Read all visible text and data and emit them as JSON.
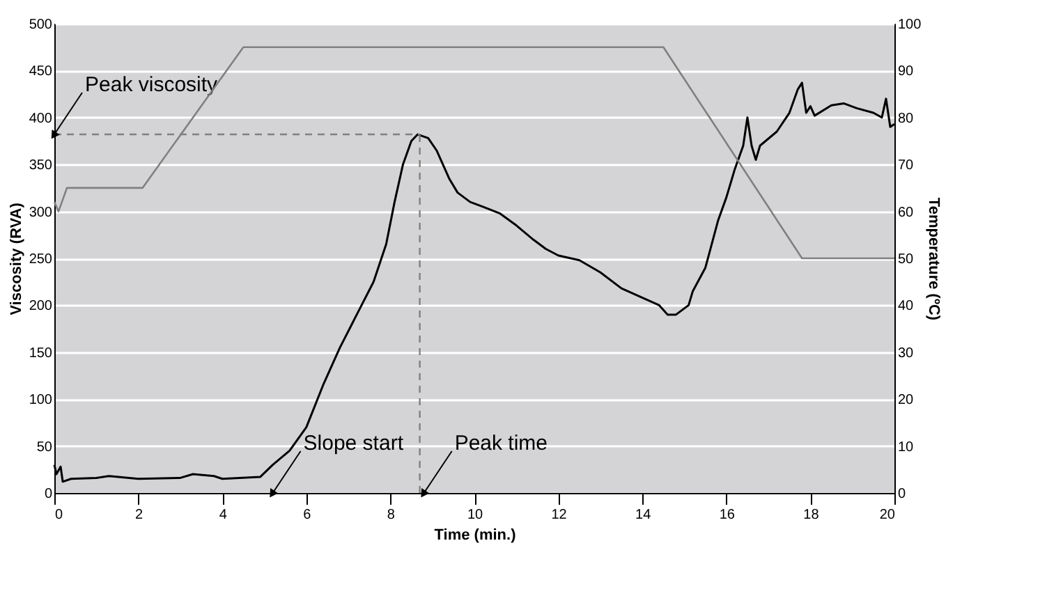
{
  "chart_data": {
    "type": "line",
    "xlabel": "Time (min.)",
    "ylabel": "Viscosity (RVA)",
    "y2label": "Temperature (ºC)",
    "xlim": [
      0,
      20
    ],
    "xticks": [
      0,
      2,
      4,
      6,
      8,
      10,
      12,
      14,
      16,
      18,
      20
    ],
    "ylim": [
      0,
      500
    ],
    "yticks": [
      0,
      50,
      100,
      150,
      200,
      250,
      300,
      350,
      400,
      450,
      500
    ],
    "y2lim": [
      0,
      100
    ],
    "y2ticks": [
      0,
      10,
      20,
      30,
      40,
      50,
      60,
      70,
      80,
      90,
      100
    ],
    "grid": "y",
    "marker": "none",
    "line_style": "solid",
    "series": [
      {
        "color": "#000000",
        "x": [
          0,
          0.05,
          0.15,
          0.2,
          0.4,
          1,
          1.3,
          2,
          3,
          3.3,
          3.8,
          4,
          4.9,
          5.2,
          5.6,
          6,
          6.4,
          6.8,
          7.2,
          7.6,
          7.9,
          8.1,
          8.3,
          8.5,
          8.65,
          8.9,
          9.1,
          9.4,
          9.6,
          9.9,
          10.2,
          10.6,
          11,
          11.4,
          11.7,
          12,
          12.5,
          13,
          13.5,
          14,
          14.4,
          14.6,
          14.8,
          15.1,
          15.2,
          15.5,
          15.8,
          16,
          16.2,
          16.4,
          16.5,
          16.6,
          16.7,
          16.8,
          17.2,
          17.5,
          17.7,
          17.8,
          17.9,
          18,
          18.1,
          18.5,
          18.8,
          19.1,
          19.5,
          19.7,
          19.8,
          19.9,
          20
        ],
        "values": [
          30,
          20,
          28,
          12,
          15,
          16,
          18,
          15,
          16,
          20,
          18,
          15,
          17,
          30,
          45,
          70,
          115,
          155,
          190,
          225,
          265,
          310,
          350,
          375,
          382,
          378,
          365,
          335,
          320,
          310,
          305,
          298,
          285,
          270,
          260,
          253,
          248,
          235,
          218,
          208,
          200,
          190,
          190,
          200,
          215,
          240,
          290,
          315,
          345,
          370,
          400,
          370,
          355,
          370,
          385,
          405,
          430,
          437,
          405,
          412,
          402,
          413,
          415,
          410,
          405,
          400,
          420,
          390,
          393
        ]
      },
      {
        "color": "#808080",
        "axis": "y2",
        "x": [
          0,
          0.1,
          0.3,
          2.1,
          4.5,
          14.5,
          17.8,
          20
        ],
        "values": [
          62,
          60,
          65,
          65,
          95,
          95,
          50,
          50
        ]
      }
    ],
    "ref_lines": [
      {
        "axis": "y",
        "value": 382,
        "color": "#808080",
        "line_style": "dashed"
      },
      {
        "axis": "x",
        "value": 8.7,
        "color": "#808080",
        "line_style": "dashed"
      }
    ],
    "annotations": [
      {
        "text": "Peak viscosity",
        "x": 0,
        "y": 382
      },
      {
        "text": "Slope start",
        "x": 5.2,
        "y": 0
      },
      {
        "text": "Peak time",
        "x": 8.8,
        "y": 0
      }
    ]
  }
}
